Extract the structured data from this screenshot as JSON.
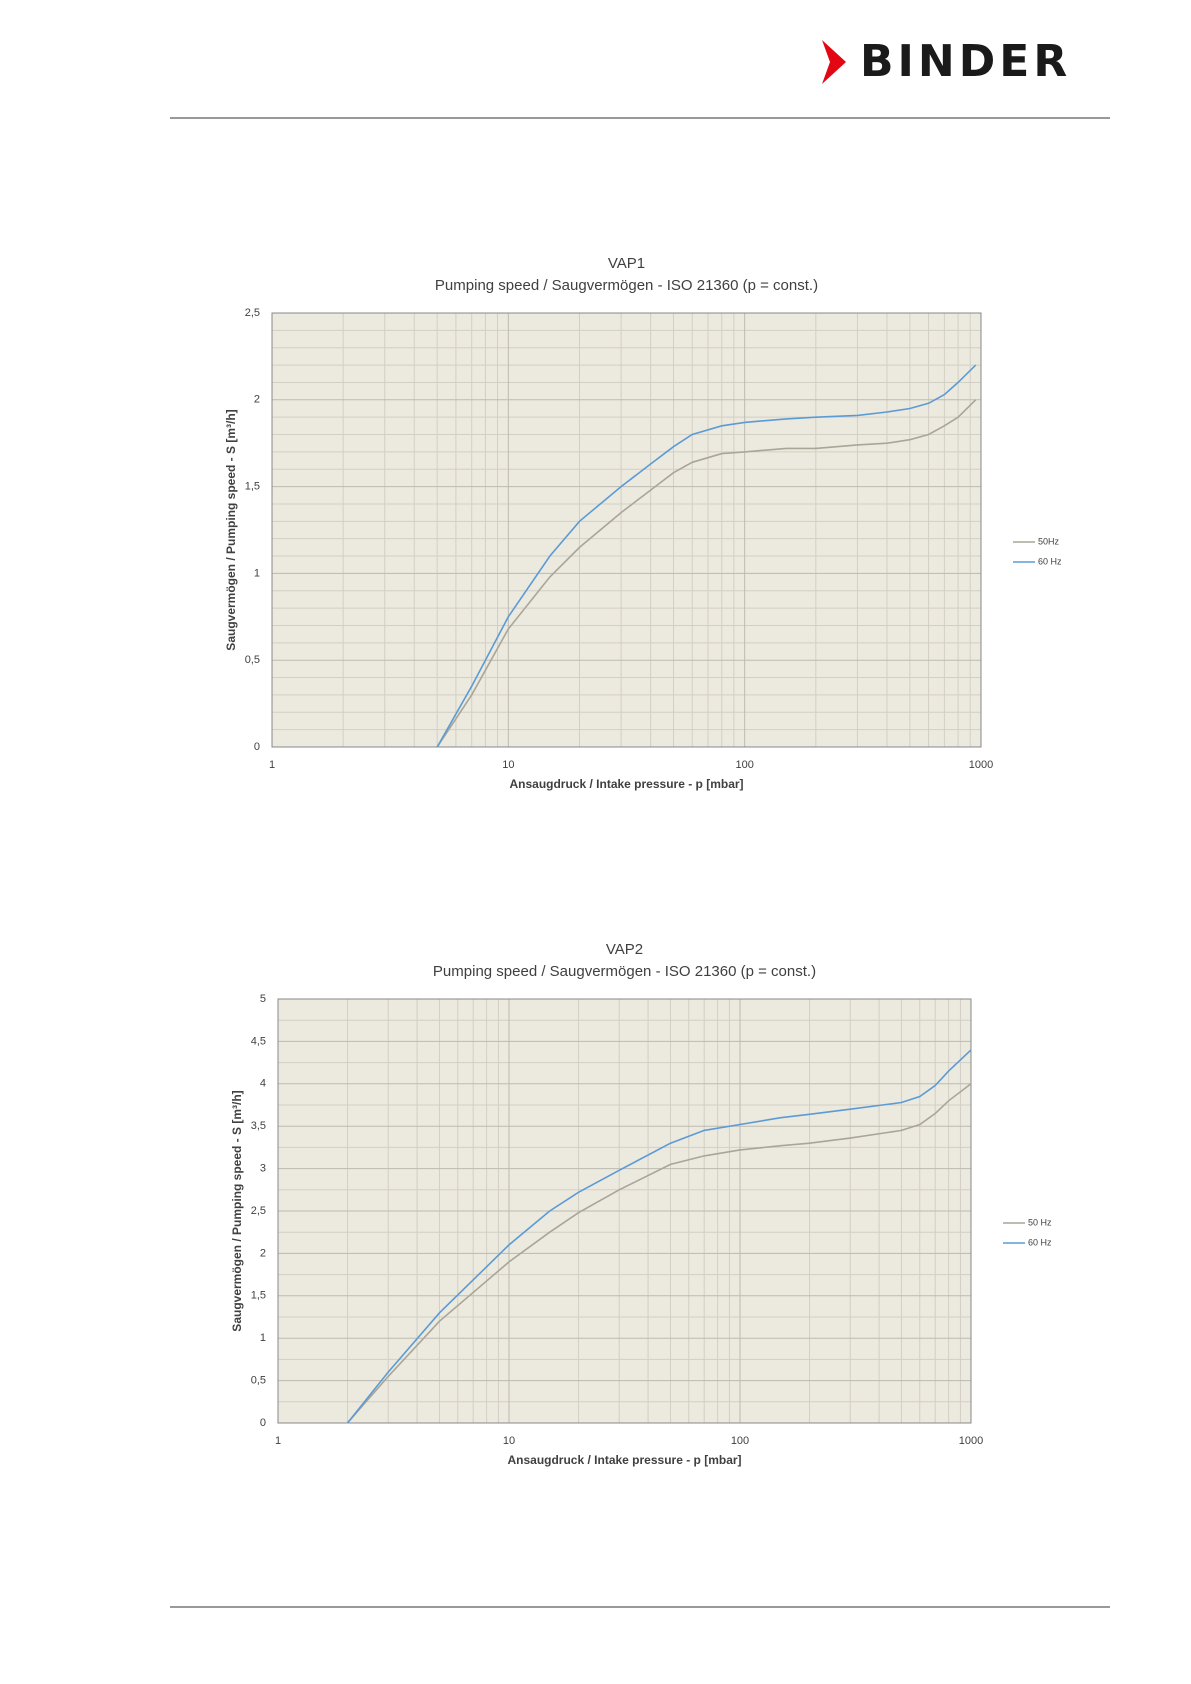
{
  "header": {
    "logo": "BINDER"
  },
  "chart_data": [
    {
      "type": "line",
      "title": "VAP1",
      "subtitle": "Pumping speed / Saugvermögen - ISO 21360 (p = const.)",
      "x_label": "Ansaugdruck / Intake pressure - p [mbar]",
      "y_label": "Saugvermögen / Pumping speed - S [m³/h]",
      "x_scale": "log",
      "xlim": [
        1,
        1000
      ],
      "xticks": [
        1,
        10,
        100,
        1000
      ],
      "x_minor_grid": [
        2,
        3,
        4,
        5,
        6,
        7,
        8,
        9,
        20,
        30,
        40,
        50,
        60,
        70,
        80,
        90,
        200,
        300,
        400,
        500,
        600,
        700,
        800,
        900
      ],
      "ylim": [
        0,
        2.5
      ],
      "yticks": [
        0,
        {
          "value": 0.5,
          "label": "0,5"
        },
        1,
        {
          "value": 1.5,
          "label": "1,5"
        },
        2,
        {
          "value": 2.5,
          "label": "2,5"
        }
      ],
      "y_minor_grid": [
        0.1,
        0.2,
        0.3,
        0.4,
        0.6,
        0.7,
        0.8,
        0.9,
        1.1,
        1.2,
        1.3,
        1.4,
        1.6,
        1.7,
        1.8,
        1.9,
        2.1,
        2.2,
        2.3,
        2.4
      ],
      "grid": true,
      "legend": "right",
      "x": [
        5,
        7,
        10,
        15,
        20,
        30,
        40,
        50,
        60,
        80,
        100,
        150,
        200,
        300,
        400,
        500,
        600,
        700,
        800,
        950
      ],
      "series": [
        {
          "name": "50Hz",
          "color": "#a9a597",
          "values": [
            0,
            0.3,
            0.68,
            0.98,
            1.15,
            1.35,
            1.48,
            1.58,
            1.64,
            1.69,
            1.7,
            1.72,
            1.72,
            1.74,
            1.75,
            1.77,
            1.8,
            1.85,
            1.9,
            2.0
          ]
        },
        {
          "name": "60 Hz",
          "color": "#5b9bd5",
          "values": [
            0,
            0.35,
            0.75,
            1.1,
            1.3,
            1.5,
            1.63,
            1.73,
            1.8,
            1.85,
            1.87,
            1.89,
            1.9,
            1.91,
            1.93,
            1.95,
            1.98,
            2.03,
            2.1,
            2.2
          ]
        }
      ]
    },
    {
      "type": "line",
      "title": "VAP2",
      "subtitle": "Pumping speed / Saugvermögen - ISO 21360 (p = const.)",
      "x_label": "Ansaugdruck / Intake pressure - p [mbar]",
      "y_label": "Saugvermögen / Pumping speed - S [m³/h]",
      "x_scale": "log",
      "xlim": [
        1,
        1000
      ],
      "xticks": [
        1,
        10,
        100,
        1000
      ],
      "x_minor_grid": [
        2,
        3,
        4,
        5,
        6,
        7,
        8,
        9,
        20,
        30,
        40,
        50,
        60,
        70,
        80,
        90,
        200,
        300,
        400,
        500,
        600,
        700,
        800,
        900
      ],
      "ylim": [
        0,
        5
      ],
      "yticks": [
        0,
        {
          "value": 0.5,
          "label": "0,5"
        },
        1,
        {
          "value": 1.5,
          "label": "1,5"
        },
        2,
        {
          "value": 2.5,
          "label": "2,5"
        },
        3,
        {
          "value": 3.5,
          "label": "3,5"
        },
        4,
        {
          "value": 4.5,
          "label": "4,5"
        },
        5
      ],
      "y_minor_grid": [
        0.25,
        0.75,
        1.25,
        1.75,
        2.25,
        2.75,
        3.25,
        3.75,
        4.25,
        4.75
      ],
      "grid": true,
      "legend": "right",
      "x": [
        2,
        3,
        5,
        10,
        15,
        20,
        30,
        50,
        70,
        100,
        150,
        200,
        300,
        500,
        600,
        700,
        800,
        1000
      ],
      "series": [
        {
          "name": "50 Hz",
          "color": "#a9a597",
          "values": [
            0,
            0.55,
            1.2,
            1.9,
            2.25,
            2.48,
            2.75,
            3.05,
            3.15,
            3.22,
            3.27,
            3.3,
            3.36,
            3.45,
            3.52,
            3.65,
            3.8,
            4.0
          ]
        },
        {
          "name": "60 Hz",
          "color": "#5b9bd5",
          "values": [
            0,
            0.6,
            1.3,
            2.1,
            2.5,
            2.72,
            2.98,
            3.3,
            3.45,
            3.52,
            3.6,
            3.64,
            3.7,
            3.78,
            3.85,
            3.98,
            4.15,
            4.4
          ]
        }
      ]
    }
  ]
}
